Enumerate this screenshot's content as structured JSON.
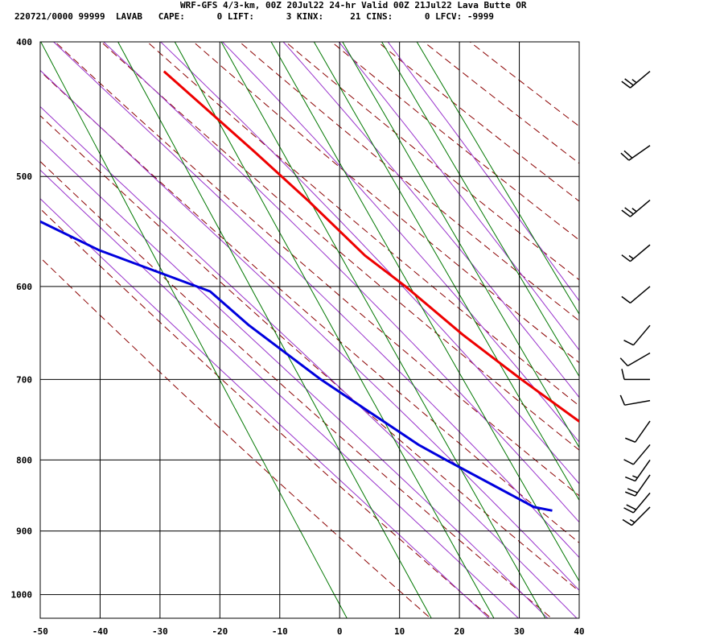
{
  "header": {
    "line1": "WRF-GFS 4/3-km, 00Z 20Jul22 24-hr Valid 00Z 21Jul22 Lava Butte OR",
    "line2": "220721/0000 99999  LAVAB   CAPE:      0 LIFT:      3 KINX:     21 CINS:      0 LFCV: -9999"
  },
  "colors": {
    "temperature": "#ee0000",
    "dewpoint": "#0000dd",
    "dry_adiabat": "#8b0000",
    "moist_adiabat": "#9933cc",
    "mixing_ratio": "#007700",
    "grid": "#000000"
  },
  "chart_data": {
    "type": "line",
    "title": "",
    "x_axis": {
      "ticks": [
        -50,
        -40,
        -30,
        -20,
        -10,
        0,
        10,
        20,
        30,
        40
      ],
      "range": [
        -50,
        40
      ]
    },
    "y_axis": {
      "scale": "log",
      "ticks": [
        400,
        500,
        600,
        700,
        800,
        900,
        1000
      ],
      "range": [
        400,
        1040
      ]
    },
    "skew_deg_per_log_p": 44.4,
    "grid": true,
    "series": [
      {
        "kind": "temperature",
        "points": [
          {
            "p": 870,
            "t": 31.5
          },
          {
            "p": 867,
            "t": 30.2
          },
          {
            "p": 855,
            "t": 27.0
          },
          {
            "p": 830,
            "t": 22.0
          },
          {
            "p": 800,
            "t": 17.2
          },
          {
            "p": 770,
            "t": 14.5
          },
          {
            "p": 700,
            "t": 5.5
          },
          {
            "p": 650,
            "t": -1.0
          },
          {
            "p": 600,
            "t": -7.0
          },
          {
            "p": 570,
            "t": -11.5
          },
          {
            "p": 520,
            "t": -17.0
          },
          {
            "p": 480,
            "t": -22.3
          },
          {
            "p": 420,
            "t": -31.5
          }
        ]
      },
      {
        "kind": "dewpoint",
        "points": [
          {
            "p": 870,
            "t": 1.0
          },
          {
            "p": 865,
            "t": -1.8
          },
          {
            "p": 800,
            "t": -13.0
          },
          {
            "p": 780,
            "t": -16.5
          },
          {
            "p": 700,
            "t": -28.0
          },
          {
            "p": 640,
            "t": -36.0
          },
          {
            "p": 605,
            "t": -40.0
          },
          {
            "p": 565,
            "t": -55.5
          },
          {
            "p": 520,
            "t": -69.0
          },
          {
            "p": 470,
            "t": -78.5
          },
          {
            "p": 420,
            "t": -85.0
          }
        ]
      }
    ],
    "dry_adiabats_theta_C": [
      -30,
      -20,
      -10,
      0,
      10,
      20,
      30,
      40,
      50,
      60,
      70,
      80,
      90,
      100,
      110
    ],
    "moist_adiabats_theta_w_C": [
      -20,
      -15,
      -10,
      -5,
      0,
      5,
      10,
      15,
      20,
      25,
      30,
      35
    ],
    "mixing_ratio_lines_gkg": [
      0.1,
      0.4,
      1,
      2,
      4,
      7,
      10,
      16,
      24
    ],
    "wind_barbs": [
      {
        "p": 420,
        "dir": 230,
        "kt": 25
      },
      {
        "p": 475,
        "dir": 235,
        "kt": 20
      },
      {
        "p": 520,
        "dir": 230,
        "kt": 25
      },
      {
        "p": 560,
        "dir": 230,
        "kt": 15
      },
      {
        "p": 600,
        "dir": 230,
        "kt": 10
      },
      {
        "p": 640,
        "dir": 220,
        "kt": 10
      },
      {
        "p": 670,
        "dir": 240,
        "kt": 10
      },
      {
        "p": 700,
        "dir": 270,
        "kt": 10
      },
      {
        "p": 725,
        "dir": 260,
        "kt": 10
      },
      {
        "p": 750,
        "dir": 215,
        "kt": 10
      },
      {
        "p": 780,
        "dir": 220,
        "kt": 10
      },
      {
        "p": 800,
        "dir": 215,
        "kt": 15
      },
      {
        "p": 820,
        "dir": 215,
        "kt": 20
      },
      {
        "p": 845,
        "dir": 220,
        "kt": 20
      },
      {
        "p": 865,
        "dir": 225,
        "kt": 15
      }
    ]
  }
}
